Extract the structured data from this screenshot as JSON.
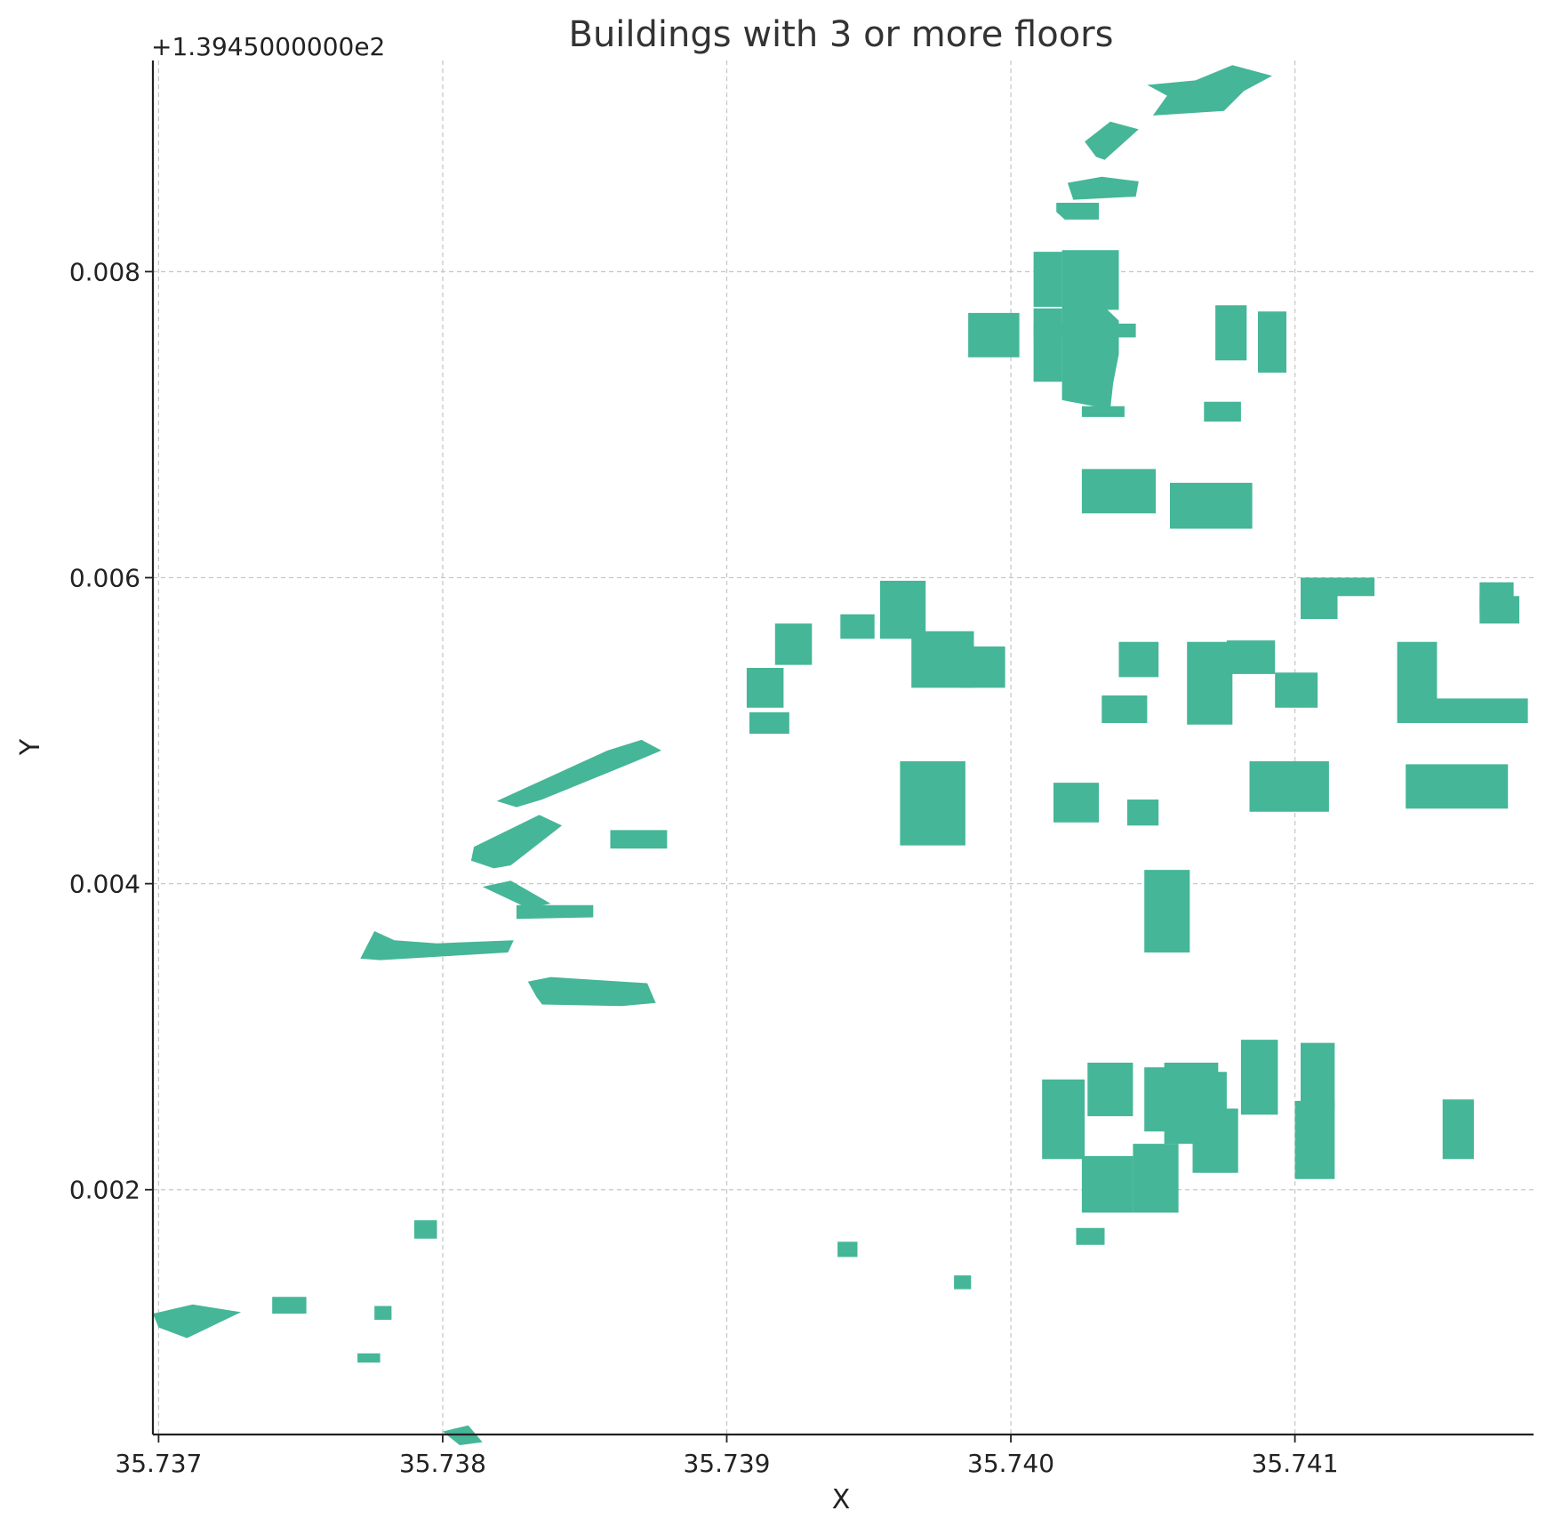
{
  "chart_data": {
    "type": "map",
    "title": "Buildings with 3 or more floors",
    "xlabel": "X",
    "ylabel": "Y",
    "y_offset_label": "+1.3945000000e2",
    "y_offset": 139.45,
    "xlim": [
      35.73698,
      35.74184
    ],
    "ylim": [
      0.0004,
      0.00938
    ],
    "grid": true,
    "fill_color": "#45b698",
    "x_ticks": [
      {
        "value": 35.737,
        "label": "35.737"
      },
      {
        "value": 35.738,
        "label": "35.738"
      },
      {
        "value": 35.739,
        "label": "35.739"
      },
      {
        "value": 35.74,
        "label": "35.740"
      },
      {
        "value": 35.741,
        "label": "35.741"
      }
    ],
    "y_ticks": [
      {
        "value": 0.002,
        "label": "0.002"
      },
      {
        "value": 0.004,
        "label": "0.004"
      },
      {
        "value": 0.006,
        "label": "0.006"
      },
      {
        "value": 0.008,
        "label": "0.008"
      }
    ],
    "buildings": [
      [
        [
          35.74065,
          0.00925
        ],
        [
          35.74078,
          0.00935
        ],
        [
          35.74092,
          0.00928
        ],
        [
          35.74082,
          0.00918
        ],
        [
          35.74075,
          0.00905
        ],
        [
          35.7405,
          0.00902
        ],
        [
          35.74055,
          0.00915
        ],
        [
          35.74048,
          0.00922
        ]
      ],
      [
        [
          35.74026,
          0.00885
        ],
        [
          35.74035,
          0.00898
        ],
        [
          35.74045,
          0.00893
        ],
        [
          35.74033,
          0.00873
        ],
        [
          35.7403,
          0.00875
        ]
      ],
      [
        [
          35.7402,
          0.00858
        ],
        [
          35.74032,
          0.00862
        ],
        [
          35.74045,
          0.00859
        ],
        [
          35.74044,
          0.00849
        ],
        [
          35.74022,
          0.00847
        ]
      ],
      [
        [
          35.74016,
          0.00845
        ],
        [
          35.74031,
          0.00845
        ],
        [
          35.74031,
          0.00834
        ],
        [
          35.74019,
          0.00834
        ],
        [
          35.74016,
          0.00839
        ]
      ],
      [
        [
          35.74018,
          0.00814
        ],
        [
          35.74038,
          0.00814
        ],
        [
          35.74038,
          0.00775
        ],
        [
          35.74034,
          0.00775
        ],
        [
          35.74038,
          0.00768
        ],
        [
          35.74038,
          0.00746
        ],
        [
          35.74036,
          0.00727
        ],
        [
          35.74035,
          0.0071
        ],
        [
          35.74018,
          0.00716
        ],
        [
          35.74018,
          0.00757
        ]
      ],
      [
        [
          35.74025,
          0.00712
        ],
        [
          35.7404,
          0.00712
        ],
        [
          35.7404,
          0.00705
        ],
        [
          35.74025,
          0.00705
        ]
      ],
      [
        [
          35.74008,
          0.00766
        ],
        [
          35.74044,
          0.00766
        ],
        [
          35.74044,
          0.00757
        ],
        [
          35.74008,
          0.00757
        ]
      ],
      [
        [
          35.73985,
          0.00773
        ],
        [
          35.74003,
          0.00773
        ],
        [
          35.74003,
          0.00744
        ],
        [
          35.73985,
          0.00744
        ]
      ],
      [
        [
          35.74008,
          0.00813
        ],
        [
          35.74018,
          0.00813
        ],
        [
          35.74018,
          0.00777
        ],
        [
          35.74008,
          0.00777
        ]
      ],
      [
        [
          35.74008,
          0.00776
        ],
        [
          35.74018,
          0.00776
        ],
        [
          35.74018,
          0.00728
        ],
        [
          35.74008,
          0.00728
        ]
      ],
      [
        [
          35.74072,
          0.00778
        ],
        [
          35.74083,
          0.00778
        ],
        [
          35.74083,
          0.00742
        ],
        [
          35.74072,
          0.00742
        ]
      ],
      [
        [
          35.74087,
          0.00774
        ],
        [
          35.74097,
          0.00774
        ],
        [
          35.74097,
          0.00734
        ],
        [
          35.74087,
          0.00734
        ]
      ],
      [
        [
          35.74068,
          0.00715
        ],
        [
          35.74081,
          0.00715
        ],
        [
          35.74081,
          0.00702
        ],
        [
          35.74068,
          0.00702
        ]
      ],
      [
        [
          35.74025,
          0.00671
        ],
        [
          35.74051,
          0.00671
        ],
        [
          35.74051,
          0.00642
        ],
        [
          35.74025,
          0.00642
        ]
      ],
      [
        [
          35.74056,
          0.00662
        ],
        [
          35.74085,
          0.00662
        ],
        [
          35.74085,
          0.00632
        ],
        [
          35.74056,
          0.00632
        ]
      ],
      [
        [
          35.73954,
          0.00598
        ],
        [
          35.7397,
          0.00598
        ],
        [
          35.7397,
          0.0056
        ],
        [
          35.73954,
          0.0056
        ]
      ],
      [
        [
          35.73982,
          0.00555
        ],
        [
          35.73998,
          0.00555
        ],
        [
          35.73998,
          0.00528
        ],
        [
          35.73982,
          0.00528
        ]
      ],
      [
        [
          35.7394,
          0.00576
        ],
        [
          35.73952,
          0.00576
        ],
        [
          35.73952,
          0.0056
        ],
        [
          35.7394,
          0.0056
        ]
      ],
      [
        [
          35.73917,
          0.0057
        ],
        [
          35.7393,
          0.0057
        ],
        [
          35.7393,
          0.00543
        ],
        [
          35.73917,
          0.00543
        ]
      ],
      [
        [
          35.73907,
          0.00541
        ],
        [
          35.7392,
          0.00541
        ],
        [
          35.7392,
          0.00515
        ],
        [
          35.73907,
          0.00515
        ]
      ],
      [
        [
          35.74032,
          0.00523
        ],
        [
          35.74048,
          0.00523
        ],
        [
          35.74048,
          0.00505
        ],
        [
          35.74032,
          0.00505
        ]
      ],
      [
        [
          35.73961,
          0.0048
        ],
        [
          35.73984,
          0.0048
        ],
        [
          35.73984,
          0.00425
        ],
        [
          35.73961,
          0.00425
        ]
      ],
      [
        [
          35.74015,
          0.00466
        ],
        [
          35.74031,
          0.00466
        ],
        [
          35.74031,
          0.0044
        ],
        [
          35.74015,
          0.0044
        ]
      ],
      [
        [
          35.74041,
          0.00455
        ],
        [
          35.74052,
          0.00455
        ],
        [
          35.74052,
          0.00438
        ],
        [
          35.74041,
          0.00438
        ]
      ],
      [
        [
          35.74084,
          0.0048
        ],
        [
          35.74112,
          0.0048
        ],
        [
          35.74112,
          0.00447
        ],
        [
          35.74084,
          0.00447
        ]
      ],
      [
        [
          35.74139,
          0.00478
        ],
        [
          35.74175,
          0.00478
        ],
        [
          35.74175,
          0.00449
        ],
        [
          35.74139,
          0.00449
        ]
      ],
      [
        [
          35.74047,
          0.00409
        ],
        [
          35.74063,
          0.00409
        ],
        [
          35.74063,
          0.00355
        ],
        [
          35.74047,
          0.00355
        ]
      ],
      [
        [
          35.73965,
          0.00565
        ],
        [
          35.73987,
          0.00565
        ],
        [
          35.73987,
          0.00528
        ],
        [
          35.73965,
          0.00528
        ]
      ],
      [
        [
          35.73908,
          0.00512
        ],
        [
          35.73922,
          0.00512
        ],
        [
          35.73922,
          0.00498
        ],
        [
          35.73908,
          0.00498
        ]
      ],
      [
        [
          35.74093,
          0.00538
        ],
        [
          35.74108,
          0.00538
        ],
        [
          35.74108,
          0.00515
        ],
        [
          35.74093,
          0.00515
        ]
      ],
      [
        [
          35.74136,
          0.00558
        ],
        [
          35.7415,
          0.00558
        ],
        [
          35.7415,
          0.00505
        ],
        [
          35.74136,
          0.00505
        ]
      ],
      [
        [
          35.74147,
          0.00521
        ],
        [
          35.74182,
          0.00521
        ],
        [
          35.74182,
          0.00505
        ],
        [
          35.74147,
          0.00505
        ]
      ],
      [
        [
          35.74102,
          0.006
        ],
        [
          35.74115,
          0.006
        ],
        [
          35.74115,
          0.00573
        ],
        [
          35.74102,
          0.00573
        ]
      ],
      [
        [
          35.7411,
          0.006
        ],
        [
          35.74128,
          0.006
        ],
        [
          35.74128,
          0.00588
        ],
        [
          35.7411,
          0.00588
        ]
      ],
      [
        [
          35.74165,
          0.00588
        ],
        [
          35.74179,
          0.00588
        ],
        [
          35.74179,
          0.0057
        ],
        [
          35.74165,
          0.0057
        ]
      ],
      [
        [
          35.74062,
          0.00558
        ],
        [
          35.74078,
          0.00558
        ],
        [
          35.74078,
          0.00504
        ],
        [
          35.74062,
          0.00504
        ]
      ],
      [
        [
          35.74038,
          0.00558
        ],
        [
          35.74052,
          0.00558
        ],
        [
          35.74052,
          0.00535
        ],
        [
          35.74038,
          0.00535
        ]
      ],
      [
        [
          35.74076,
          0.00559
        ],
        [
          35.74093,
          0.00559
        ],
        [
          35.74093,
          0.00537
        ],
        [
          35.74076,
          0.00537
        ]
      ],
      [
        [
          35.74165,
          0.00597
        ],
        [
          35.74177,
          0.00597
        ],
        [
          35.74177,
          0.00578
        ],
        [
          35.74165,
          0.00578
        ]
      ],
      [
        [
          35.74137,
          0.00538
        ],
        [
          35.74148,
          0.00538
        ],
        [
          35.74148,
          0.00505
        ],
        [
          35.74137,
          0.00505
        ]
      ],
      [
        [
          35.73858,
          0.00487
        ],
        [
          35.7387,
          0.00494
        ],
        [
          35.73877,
          0.00487
        ],
        [
          35.73868,
          0.0048
        ],
        [
          35.73835,
          0.00455
        ],
        [
          35.73826,
          0.0045
        ],
        [
          35.73819,
          0.00454
        ]
      ],
      [
        [
          35.73811,
          0.00424
        ],
        [
          35.73834,
          0.00445
        ],
        [
          35.73842,
          0.00438
        ],
        [
          35.73824,
          0.00412
        ],
        [
          35.73818,
          0.0041
        ],
        [
          35.7381,
          0.00415
        ]
      ],
      [
        [
          35.73879,
          0.00435
        ],
        [
          35.73879,
          0.00423
        ],
        [
          35.73859,
          0.00423
        ],
        [
          35.73859,
          0.00435
        ]
      ],
      [
        [
          35.73853,
          0.00386
        ],
        [
          35.73853,
          0.00378
        ],
        [
          35.73826,
          0.00377
        ],
        [
          35.73826,
          0.00386
        ]
      ],
      [
        [
          35.73814,
          0.00398
        ],
        [
          35.73824,
          0.00402
        ],
        [
          35.73838,
          0.00387
        ],
        [
          35.7383,
          0.00384
        ]
      ],
      [
        [
          35.73776,
          0.00369
        ],
        [
          35.73783,
          0.00363
        ],
        [
          35.73798,
          0.00361
        ],
        [
          35.73825,
          0.00363
        ],
        [
          35.73823,
          0.00355
        ],
        [
          35.73778,
          0.0035
        ],
        [
          35.73771,
          0.00351
        ]
      ],
      [
        [
          35.7383,
          0.00336
        ],
        [
          35.73838,
          0.00339
        ],
        [
          35.73863,
          0.00336
        ],
        [
          35.73872,
          0.00335
        ],
        [
          35.73875,
          0.00322
        ],
        [
          35.73863,
          0.0032
        ],
        [
          35.73835,
          0.00321
        ],
        [
          35.73833,
          0.00326
        ]
      ],
      [
        [
          35.741,
          0.00258
        ],
        [
          35.74114,
          0.00258
        ],
        [
          35.74114,
          0.00207
        ],
        [
          35.741,
          0.00207
        ]
      ],
      [
        [
          35.74152,
          0.00259
        ],
        [
          35.74163,
          0.00259
        ],
        [
          35.74163,
          0.0022
        ],
        [
          35.74152,
          0.0022
        ]
      ],
      [
        [
          35.74081,
          0.00298
        ],
        [
          35.74094,
          0.00298
        ],
        [
          35.74094,
          0.00249
        ],
        [
          35.74081,
          0.00249
        ]
      ],
      [
        [
          35.74102,
          0.00296
        ],
        [
          35.74114,
          0.00296
        ],
        [
          35.74114,
          0.00253
        ],
        [
          35.74102,
          0.00253
        ]
      ],
      [
        [
          35.74064,
          0.00253
        ],
        [
          35.7408,
          0.00253
        ],
        [
          35.7408,
          0.00211
        ],
        [
          35.74064,
          0.00211
        ]
      ],
      [
        [
          35.74054,
          0.00283
        ],
        [
          35.74073,
          0.00283
        ],
        [
          35.74073,
          0.0023
        ],
        [
          35.74054,
          0.0023
        ]
      ],
      [
        [
          35.74064,
          0.00277
        ],
        [
          35.74076,
          0.00277
        ],
        [
          35.74076,
          0.00226
        ],
        [
          35.74064,
          0.00226
        ]
      ],
      [
        [
          35.74027,
          0.00283
        ],
        [
          35.74043,
          0.00283
        ],
        [
          35.74043,
          0.00248
        ],
        [
          35.74027,
          0.00248
        ]
      ],
      [
        [
          35.74047,
          0.0028
        ],
        [
          35.74059,
          0.0028
        ],
        [
          35.74059,
          0.00238
        ],
        [
          35.74047,
          0.00238
        ]
      ],
      [
        [
          35.74011,
          0.00272
        ],
        [
          35.74026,
          0.00272
        ],
        [
          35.74026,
          0.0022
        ],
        [
          35.74011,
          0.0022
        ]
      ],
      [
        [
          35.74025,
          0.00222
        ],
        [
          35.74043,
          0.00222
        ],
        [
          35.74043,
          0.00185
        ],
        [
          35.74025,
          0.00185
        ]
      ],
      [
        [
          35.74043,
          0.0023
        ],
        [
          35.74059,
          0.0023
        ],
        [
          35.74059,
          0.00185
        ],
        [
          35.74043,
          0.00185
        ]
      ],
      [
        [
          35.74023,
          0.00175
        ],
        [
          35.74033,
          0.00175
        ],
        [
          35.74033,
          0.00164
        ],
        [
          35.74023,
          0.00164
        ]
      ],
      [
        [
          35.73939,
          0.00166
        ],
        [
          35.73946,
          0.00166
        ],
        [
          35.73946,
          0.00156
        ],
        [
          35.73939,
          0.00156
        ]
      ],
      [
        [
          35.7398,
          0.00144
        ],
        [
          35.73986,
          0.00144
        ],
        [
          35.73986,
          0.00135
        ],
        [
          35.7398,
          0.00135
        ]
      ],
      [
        [
          35.7379,
          0.0018
        ],
        [
          35.73798,
          0.0018
        ],
        [
          35.73798,
          0.00168
        ],
        [
          35.7379,
          0.00168
        ]
      ],
      [
        [
          35.73776,
          0.00124
        ],
        [
          35.73782,
          0.00124
        ],
        [
          35.73782,
          0.00115
        ],
        [
          35.73776,
          0.00115
        ]
      ],
      [
        [
          35.7377,
          0.00093
        ],
        [
          35.73778,
          0.00093
        ],
        [
          35.73778,
          0.00087
        ],
        [
          35.7377,
          0.00087
        ]
      ],
      [
        [
          35.7374,
          0.0013
        ],
        [
          35.73752,
          0.0013
        ],
        [
          35.73752,
          0.00119
        ],
        [
          35.7374,
          0.00119
        ]
      ],
      [
        [
          35.73698,
          0.00119
        ],
        [
          35.73712,
          0.00125
        ],
        [
          35.73729,
          0.0012
        ],
        [
          35.7371,
          0.00103
        ],
        [
          35.737,
          0.0011
        ]
      ],
      [
        [
          35.738,
          0.00042
        ],
        [
          35.73809,
          0.00046
        ],
        [
          35.73814,
          0.00035
        ],
        [
          35.73806,
          0.00033
        ]
      ]
    ]
  }
}
